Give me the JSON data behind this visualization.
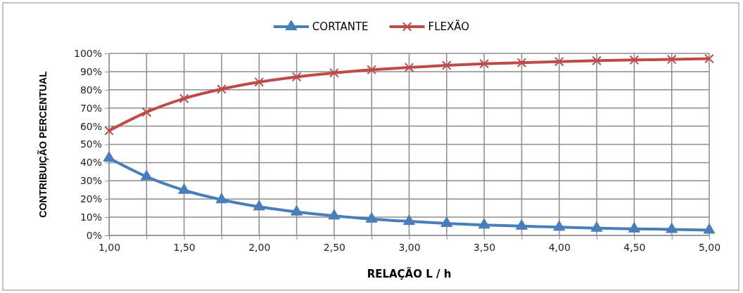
{
  "chart_data": {
    "type": "line",
    "xlabel": "RELAÇÃO L / h",
    "ylabel": "CONTRIBUIÇÃO PERCENTUAL",
    "x": [
      1,
      1.25,
      1.5,
      1.75,
      2,
      2.25,
      2.5,
      2.75,
      3,
      3.25,
      3.5,
      3.75,
      4,
      4.25,
      4.5,
      4.75,
      5
    ],
    "series": [
      {
        "name": "CORTANTE",
        "color": "#4a7ebb",
        "marker": "triangle",
        "values": [
          42.5,
          32.3,
          24.8,
          19.6,
          15.7,
          12.9,
          10.7,
          9.0,
          7.7,
          6.6,
          5.7,
          5.1,
          4.5,
          4.0,
          3.6,
          3.3,
          2.9
        ]
      },
      {
        "name": "FLEXÃO",
        "color": "#be4b48",
        "marker": "cross",
        "values": [
          57.5,
          67.7,
          75.2,
          80.4,
          84.3,
          87.1,
          89.3,
          91.0,
          92.3,
          93.4,
          94.3,
          94.9,
          95.5,
          96.0,
          96.4,
          96.7,
          97.1
        ]
      }
    ],
    "xlim": [
      1,
      5
    ],
    "xticks": [
      {
        "value": 1,
        "label": "1,00"
      },
      {
        "value": 1.25,
        "label": null
      },
      {
        "value": 1.5,
        "label": "1,50"
      },
      {
        "value": 1.75,
        "label": null
      },
      {
        "value": 2,
        "label": "2,00"
      },
      {
        "value": 2.25,
        "label": null
      },
      {
        "value": 2.5,
        "label": "2,50"
      },
      {
        "value": 2.75,
        "label": null
      },
      {
        "value": 3,
        "label": "3,00"
      },
      {
        "value": 3.25,
        "label": null
      },
      {
        "value": 3.5,
        "label": "3,50"
      },
      {
        "value": 3.75,
        "label": null
      },
      {
        "value": 4,
        "label": "4,00"
      },
      {
        "value": 4.25,
        "label": null
      },
      {
        "value": 4.5,
        "label": "4,50"
      },
      {
        "value": 4.75,
        "label": null
      },
      {
        "value": 5,
        "label": "5,00"
      }
    ],
    "ylim": [
      0,
      100
    ],
    "yticks": [
      {
        "value": 0,
        "label": "0%"
      },
      {
        "value": 10,
        "label": "10%"
      },
      {
        "value": 20,
        "label": "20%"
      },
      {
        "value": 30,
        "label": "30%"
      },
      {
        "value": 40,
        "label": "40%"
      },
      {
        "value": 50,
        "label": "50%"
      },
      {
        "value": 60,
        "label": "60%"
      },
      {
        "value": 70,
        "label": "70%"
      },
      {
        "value": 80,
        "label": "80%"
      },
      {
        "value": 90,
        "label": "90%"
      },
      {
        "value": 100,
        "label": "100%"
      }
    ],
    "grid": true,
    "legend": "top",
    "line_style": "solid"
  }
}
